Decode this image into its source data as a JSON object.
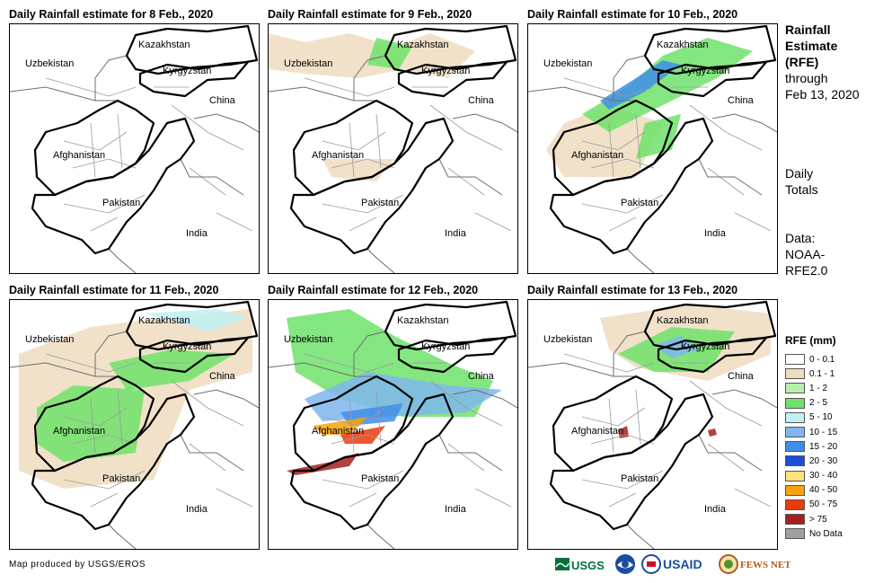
{
  "panels": [
    {
      "title": "Daily Rainfall estimate for 8 Feb., 2020",
      "precip": []
    },
    {
      "title": "Daily Rainfall estimate for 9 Feb., 2020",
      "precip": [
        {
          "cls": 1,
          "pts": [
            [
              0,
              10
            ],
            [
              40,
              20
            ],
            [
              90,
              10
            ],
            [
              140,
              25
            ],
            [
              180,
              10
            ],
            [
              230,
              30
            ],
            [
              200,
              60
            ],
            [
              150,
              50
            ],
            [
              100,
              60
            ],
            [
              40,
              55
            ],
            [
              0,
              50
            ]
          ]
        },
        {
          "cls": 3,
          "pts": [
            [
              120,
              15
            ],
            [
              160,
              25
            ],
            [
              145,
              50
            ],
            [
              110,
              45
            ]
          ]
        },
        {
          "cls": 1,
          "pts": [
            [
              60,
              150
            ],
            [
              140,
              150
            ],
            [
              120,
              175
            ],
            [
              70,
              170
            ]
          ]
        }
      ]
    },
    {
      "title": "Daily Rainfall estimate for 10 Feb., 2020",
      "precip": [
        {
          "cls": 1,
          "pts": [
            [
              40,
              110
            ],
            [
              90,
              90
            ],
            [
              150,
              110
            ],
            [
              120,
              170
            ],
            [
              40,
              170
            ],
            [
              20,
              140
            ]
          ]
        },
        {
          "cls": 3,
          "pts": [
            [
              60,
              100
            ],
            [
              110,
              70
            ],
            [
              150,
              35
            ],
            [
              200,
              15
            ],
            [
              250,
              30
            ],
            [
              210,
              60
            ],
            [
              150,
              90
            ],
            [
              90,
              120
            ]
          ]
        },
        {
          "cls": 6,
          "pts": [
            [
              80,
              85
            ],
            [
              120,
              60
            ],
            [
              150,
              40
            ],
            [
              170,
              45
            ],
            [
              130,
              75
            ],
            [
              90,
              95
            ]
          ]
        },
        {
          "cls": 3,
          "pts": [
            [
              130,
              110
            ],
            [
              170,
              100
            ],
            [
              160,
              140
            ],
            [
              120,
              150
            ]
          ]
        }
      ]
    },
    {
      "title": "Daily Rainfall estimate for 11 Feb., 2020",
      "precip": [
        {
          "cls": 1,
          "pts": [
            [
              10,
              60
            ],
            [
              90,
              30
            ],
            [
              170,
              20
            ],
            [
              270,
              10
            ],
            [
              270,
              80
            ],
            [
              200,
              100
            ],
            [
              160,
              200
            ],
            [
              60,
              210
            ],
            [
              10,
              190
            ]
          ]
        },
        {
          "cls": 3,
          "pts": [
            [
              30,
              120
            ],
            [
              70,
              95
            ],
            [
              150,
              100
            ],
            [
              140,
              170
            ],
            [
              60,
              180
            ],
            [
              30,
              160
            ]
          ]
        },
        {
          "cls": 3,
          "pts": [
            [
              110,
              70
            ],
            [
              180,
              55
            ],
            [
              250,
              60
            ],
            [
              200,
              90
            ],
            [
              130,
              100
            ]
          ]
        },
        {
          "cls": 4,
          "pts": [
            [
              150,
              15
            ],
            [
              230,
              10
            ],
            [
              265,
              20
            ],
            [
              220,
              35
            ]
          ]
        }
      ]
    },
    {
      "title": "Daily Rainfall estimate for 12 Feb., 2020",
      "precip": [
        {
          "cls": 3,
          "pts": [
            [
              20,
              20
            ],
            [
              90,
              10
            ],
            [
              140,
              40
            ],
            [
              200,
              70
            ],
            [
              250,
              90
            ],
            [
              230,
              130
            ],
            [
              150,
              130
            ],
            [
              80,
              110
            ],
            [
              30,
              80
            ]
          ]
        },
        {
          "cls": 5,
          "pts": [
            [
              40,
              110
            ],
            [
              110,
              80
            ],
            [
              200,
              95
            ],
            [
              260,
              100
            ],
            [
              220,
              125
            ],
            [
              130,
              130
            ],
            [
              60,
              135
            ]
          ]
        },
        {
          "cls": 6,
          "pts": [
            [
              80,
              125
            ],
            [
              150,
              115
            ],
            [
              140,
              135
            ],
            [
              90,
              140
            ]
          ]
        },
        {
          "cls": 9,
          "pts": [
            [
              50,
              140
            ],
            [
              110,
              130
            ],
            [
              90,
              150
            ],
            [
              60,
              150
            ]
          ]
        },
        {
          "cls": 10,
          "pts": [
            [
              80,
              150
            ],
            [
              130,
              140
            ],
            [
              115,
              160
            ],
            [
              85,
              160
            ]
          ]
        },
        {
          "cls": 11,
          "pts": [
            [
              20,
              190
            ],
            [
              70,
              180
            ],
            [
              100,
              170
            ],
            [
              90,
              185
            ],
            [
              30,
              195
            ]
          ]
        }
      ]
    },
    {
      "title": "Daily Rainfall estimate for 13 Feb., 2020",
      "precip": [
        {
          "cls": 1,
          "pts": [
            [
              80,
              20
            ],
            [
              180,
              5
            ],
            [
              270,
              15
            ],
            [
              270,
              60
            ],
            [
              200,
              90
            ],
            [
              120,
              75
            ],
            [
              90,
              55
            ]
          ]
        },
        {
          "cls": 3,
          "pts": [
            [
              100,
              60
            ],
            [
              160,
              30
            ],
            [
              230,
              35
            ],
            [
              200,
              80
            ],
            [
              140,
              80
            ]
          ]
        },
        {
          "cls": 5,
          "pts": [
            [
              140,
              50
            ],
            [
              170,
              40
            ],
            [
              190,
              55
            ],
            [
              160,
              65
            ]
          ]
        },
        {
          "cls": 11,
          "pts": [
            [
              100,
              145
            ],
            [
              110,
              140
            ],
            [
              112,
              152
            ],
            [
              102,
              154
            ]
          ]
        },
        {
          "cls": 11,
          "pts": [
            [
              200,
              145
            ],
            [
              208,
              143
            ],
            [
              210,
              150
            ],
            [
              202,
              152
            ]
          ]
        }
      ]
    }
  ],
  "map_labels": {
    "kazakhstan": "Kazakhstan",
    "uzbekistan": "Uzbekistan",
    "kyrgyzstan": "Kyrgyzstan",
    "china": "China",
    "afghanistan": "Afghanistan",
    "pakistan": "Pakistan",
    "india": "India"
  },
  "side": {
    "title_line1": "Rainfall",
    "title_line2": "Estimate",
    "title_line3": "(RFE)",
    "through": "through",
    "date": "Feb 13, 2020",
    "daily1": "Daily",
    "daily2": "Totals",
    "data1": "Data:",
    "data2": "NOAA-",
    "data3": "RFE2.0"
  },
  "legend": {
    "title": "RFE (mm)",
    "items": [
      {
        "label": "0 - 0.1",
        "color": "#ffffff"
      },
      {
        "label": "0.1 - 1",
        "color": "#eedcc0"
      },
      {
        "label": "1 - 2",
        "color": "#b6f0a8"
      },
      {
        "label": "2 - 5",
        "color": "#6ee26a"
      },
      {
        "label": "5 - 10",
        "color": "#bff0f5"
      },
      {
        "label": "10 - 15",
        "color": "#7fb6ef"
      },
      {
        "label": "15 - 20",
        "color": "#3f8ee8"
      },
      {
        "label": "20 - 30",
        "color": "#1b4fd8"
      },
      {
        "label": "30 - 40",
        "color": "#fbe27a"
      },
      {
        "label": "40 - 50",
        "color": "#f7a20c"
      },
      {
        "label": "50 - 75",
        "color": "#ea3a0c"
      },
      {
        "label": "> 75",
        "color": "#a5201e"
      },
      {
        "label": "No Data",
        "color": "#a0a0a0"
      }
    ]
  },
  "credit": "Map produced by USGS/EROS",
  "logos": {
    "usgs": "USGS",
    "usaid": "USAID",
    "fewsnet": "FEWS NET"
  }
}
